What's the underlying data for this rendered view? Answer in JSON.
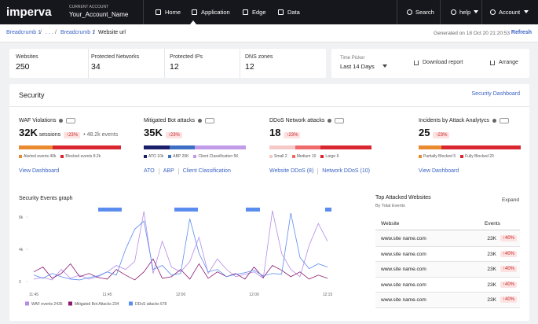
{
  "nav": {
    "logo": "imperva",
    "account_caption": "CURRENT ACCOUNT",
    "account_name": "Your_Account_Name",
    "items": [
      "Home",
      "Application",
      "Edge",
      "Data"
    ],
    "search": "Search",
    "help": "help",
    "account": "Account"
  },
  "breadcrumb": {
    "items": [
      "Breadcrumb 1",
      ". . .",
      "Breadcrumb 1",
      "Website url"
    ],
    "generated": "Generated on 18 Oct 20 21:20:53",
    "refresh": "Refresh"
  },
  "stats": [
    {
      "label": "Websites",
      "value": 250
    },
    {
      "label": "Protected Networks",
      "value": 34
    },
    {
      "label": "Protected IPs",
      "value": 12
    },
    {
      "label": "DNS zones",
      "value": 12
    }
  ],
  "time_picker": {
    "label": "Time Picker",
    "value": "Last 14 Days"
  },
  "actions": [
    "Download report",
    "Arrange"
  ],
  "security": {
    "title": "Security",
    "link": "Security Dashboard",
    "widgets": [
      {
        "title": "WAF Violations",
        "value": "32K",
        "unit": "sessions",
        "change": "23%",
        "extra": "48.2k events",
        "bar_colors": [
          "#e98a2f",
          "#d9262f"
        ],
        "legend": [
          "Alerted events 40k",
          "Blocked events 8.2k"
        ],
        "links": [
          "View Dashboard"
        ]
      },
      {
        "title": "Mitigated Bot attacks",
        "value": "35K",
        "change": "23%",
        "bar_colors": [
          "#1a1f6b",
          "#3d6fc4",
          "#c19be8"
        ],
        "legend": [
          "ATO 10k",
          "ABP 20K",
          "Client Classification 5K"
        ],
        "links": [
          "ATO",
          "ABP",
          "Client Classification"
        ]
      },
      {
        "title": "DDoS Network attacks",
        "value": "18",
        "change": "23%",
        "bar_colors": [
          "#f6c9c9",
          "#ef6b6b",
          "#d9262f"
        ],
        "legend": [
          "Small 2",
          "Medium 10",
          "Large 6"
        ],
        "links": [
          "Website DDoS (8)",
          "Network DDoS (10)"
        ]
      },
      {
        "title": "Incidents by Attack Analytycs",
        "value": "25",
        "change": "23%",
        "bar_colors": [
          "#e98a2f",
          "#d9262f"
        ],
        "legend": [
          "Partially Blocked 5",
          "Fully Blocked 20"
        ],
        "links": [
          "View Dashboard"
        ]
      }
    ]
  },
  "events_graph": {
    "type": "line",
    "title": "Security Events graph",
    "categories": [
      "11:45",
      null,
      null,
      null,
      null,
      null,
      null,
      null,
      "11:45",
      null,
      null,
      null,
      null,
      null,
      null,
      null,
      "12:00",
      null,
      null,
      null,
      null,
      null,
      null,
      null,
      "12:00",
      null,
      null,
      null,
      null,
      null,
      null,
      null,
      "12:15"
    ],
    "ylim": [
      0,
      9000
    ],
    "yticks": [
      0,
      {
        "value": 4000,
        "label": "4k"
      },
      {
        "value": 8000,
        "label": "8k"
      }
    ],
    "grid": false,
    "series": [
      {
        "name": "WAF events 2435",
        "color": "#b58be8",
        "values": [
          300,
          500,
          200,
          1500,
          400,
          800,
          300,
          600,
          1200,
          2000,
          1500,
          2500,
          8700,
          1000,
          5000,
          1800,
          1200,
          2500,
          5500,
          1000,
          2800,
          1500,
          600,
          900,
          1200,
          400,
          8800,
          3500,
          1500,
          600,
          4500,
          7200,
          5000
        ]
      },
      {
        "name": "Mitigated Bot Attacks 234",
        "color": "#8a1a6e",
        "values": [
          1200,
          1800,
          400,
          1000,
          2200,
          600,
          1000,
          500,
          300,
          1500,
          800,
          200,
          1200,
          2800,
          400,
          600,
          1500,
          300,
          2200,
          400,
          1200,
          600,
          1000,
          300,
          1800,
          500,
          2000,
          1400,
          600,
          1200,
          300,
          800,
          400
        ]
      },
      {
        "name": "DDoS attacks 678",
        "color": "#5b8def",
        "values": [
          800,
          400,
          1000,
          600,
          300,
          200,
          500,
          700,
          1200,
          800,
          4000,
          6500,
          7500,
          1500,
          2000,
          800,
          1000,
          7800,
          3500,
          1200,
          1500,
          600,
          900,
          1100,
          1400,
          700,
          1000,
          900,
          8500,
          3000,
          1600,
          2200,
          1800
        ]
      }
    ]
  },
  "top_sites": {
    "title": "Top Attacked Websites",
    "filter": "By Total Events",
    "expand": "Expand",
    "columns": [
      "Website",
      "Events"
    ],
    "rows": [
      {
        "site": "www.site name.com",
        "events": "23K",
        "change": "40%"
      },
      {
        "site": "www.site name.com",
        "events": "23K",
        "change": "40%"
      },
      {
        "site": "www.site name.com",
        "events": "23K",
        "change": "40%"
      },
      {
        "site": "www.site name.com",
        "events": "23K",
        "change": "40%"
      },
      {
        "site": "www.site name.com",
        "events": "23K",
        "change": "40%"
      }
    ]
  }
}
